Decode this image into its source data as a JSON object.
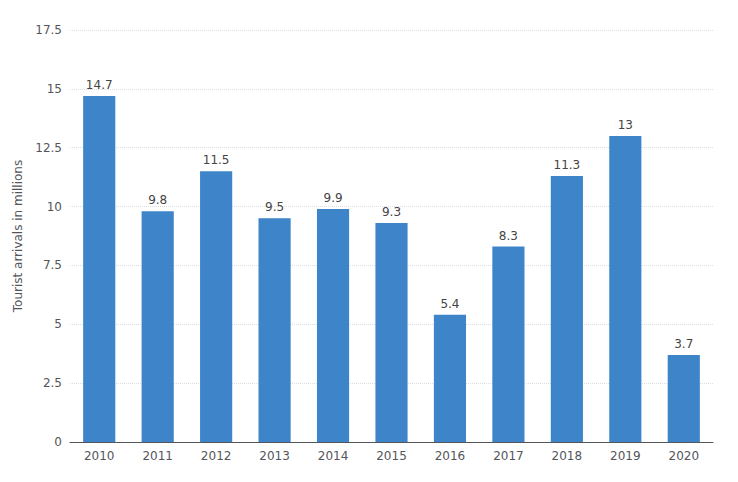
{
  "chart_data": {
    "type": "bar",
    "categories": [
      "2010",
      "2011",
      "2012",
      "2013",
      "2014",
      "2015",
      "2016",
      "2017",
      "2018",
      "2019",
      "2020"
    ],
    "values": [
      14.7,
      9.8,
      11.5,
      9.5,
      9.9,
      9.3,
      5.4,
      8.3,
      11.3,
      13.0,
      3.7
    ],
    "color": "#3d85c8",
    "ylabel": "Tourist arrivals in millions",
    "ylim": [
      0,
      17.5
    ],
    "yticks": [
      0,
      2.5,
      5.0,
      7.5,
      10.0,
      12.5,
      15.0,
      17.5
    ],
    "grid": true,
    "data_labels": true
  }
}
